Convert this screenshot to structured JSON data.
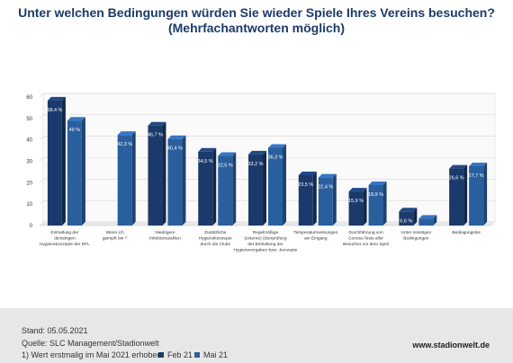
{
  "title_line1": "Unter welchen Bedingungen würden Sie wieder Spiele Ihres Vereins besuchen?",
  "title_line2": "(Mehrfachantworten möglich)",
  "colors": {
    "feb21": "#1b3a6b",
    "mai21": "#2a5f9e",
    "grid": "#d5d5d5",
    "axis_text": "#333333"
  },
  "footer": {
    "stand": "Stand: 05.05.2021",
    "quelle": "Quelle: SLC Management/Stadionwelt",
    "note": "1) Wert erstmalig im Mai 2021 erhoben",
    "website": "www.stadionwelt.de"
  },
  "chart_data": {
    "type": "bar",
    "categories": [
      [
        "Einhaltung der",
        "derzeitigen",
        "Hygienekonzepte der DFL"
      ],
      [
        "Wenn ich",
        "geimpft bin ¹⁾"
      ],
      [
        "Niedrigere",
        "Infektionszahlen"
      ],
      [
        "Zusätzliche",
        "Hygienekonzepte",
        "durch die Clubs"
      ],
      [
        "Regelmäßige",
        "(externe) Überprüfung",
        "der Einhaltung der",
        "Hygienevorgaben bzw. -konzepte"
      ],
      [
        "Temperaturmessungen",
        "am Eingang"
      ],
      [
        "Durchführung von",
        "Corona-Tests aller",
        "Besucher vor dem Spiel"
      ],
      [
        "Unter sonstigen",
        "Bedingungen"
      ],
      [
        "Bedingungslos"
      ]
    ],
    "series": [
      {
        "name": "Feb 21",
        "values": [
          58.4,
          null,
          46.7,
          34.5,
          33.2,
          23.5,
          15.9,
          6.6,
          26.6
        ],
        "labels": [
          "58,4 %",
          "",
          "46,7 %",
          "34,5 %",
          "33,2 %",
          "23,5 %",
          "15,9 %",
          "6,6 %",
          "26,6 %"
        ]
      },
      {
        "name": "Mai 21",
        "values": [
          49,
          42.3,
          40.4,
          32.5,
          36.3,
          22.4,
          18.9,
          3.2,
          27.7
        ],
        "labels": [
          "49 %",
          "42,3 %",
          "40,4 %",
          "32,5 %",
          "36,3 %",
          "22,4 %",
          "18,9 %",
          "3,2 %",
          "27,7 %"
        ]
      }
    ],
    "yticks": [
      "0",
      "10",
      "20",
      "30",
      "40",
      "50",
      "60"
    ],
    "ylim": [
      0,
      60
    ],
    "grid": true,
    "legend_placement": "bottom"
  }
}
